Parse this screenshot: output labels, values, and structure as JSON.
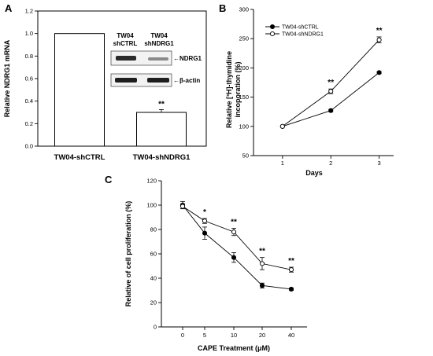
{
  "chart_data": [
    {
      "panel": "A",
      "type": "bar",
      "ylabel": "Relative NDRG1 mRNA",
      "ylim": [
        0,
        1.2
      ],
      "yticks": [
        "0.0",
        "0.2",
        "0.4",
        "0.6",
        "0.8",
        "1.0",
        "1.2"
      ],
      "categories": [
        "TW04-shCTRL",
        "TW04-shNDRG1"
      ],
      "values": [
        1.0,
        0.3
      ],
      "errors": [
        0,
        0.025
      ],
      "significance": [
        "",
        "**"
      ],
      "inset": {
        "lane_labels": [
          [
            "TW04",
            "shCTRL"
          ],
          [
            "TW04",
            "shNDRG1"
          ]
        ],
        "bands": [
          "←NDRG1",
          "←β-actin"
        ]
      }
    },
    {
      "panel": "B",
      "type": "line",
      "xlabel": "Days",
      "ylabel_line1": "Relative [³H]-thymidine",
      "ylabel_line2": "incoporation (%)",
      "xlim": [
        0.4,
        3.3
      ],
      "ylim": [
        50,
        300
      ],
      "x": [
        1,
        2,
        3
      ],
      "xticks": [
        "1",
        "2",
        "3"
      ],
      "yticks": [
        "50",
        "100",
        "150",
        "200",
        "250",
        "300"
      ],
      "series": [
        {
          "name": "TW04-shCTRL",
          "marker": "filled",
          "values": [
            100,
            127,
            192
          ],
          "errors": [
            0,
            2,
            2
          ]
        },
        {
          "name": "TW04-shNDRG1",
          "marker": "open",
          "values": [
            100,
            160,
            248
          ],
          "errors": [
            0,
            4,
            5
          ]
        }
      ],
      "significance": [
        "",
        "**",
        "**"
      ]
    },
    {
      "panel": "C",
      "type": "line",
      "xlabel": "CAPE Treatment (μM)",
      "ylabel": "Relative of cell proliferation (%)",
      "ylim": [
        0,
        120
      ],
      "x": [
        "0",
        "5",
        "10",
        "20",
        "40"
      ],
      "yticks": [
        "0",
        "20",
        "40",
        "60",
        "80",
        "100",
        "120"
      ],
      "series": [
        {
          "name": "TW04-shCTRL",
          "marker": "filled",
          "values": [
            100,
            77,
            57,
            34,
            31
          ],
          "errors": [
            3,
            5,
            4,
            2,
            1
          ]
        },
        {
          "name": "TW04-shNDRG1",
          "marker": "open",
          "values": [
            99,
            87,
            78,
            52,
            47
          ],
          "errors": [
            2,
            2,
            3,
            5,
            2
          ]
        }
      ],
      "significance": [
        "",
        "*",
        "**",
        "**",
        "**"
      ]
    }
  ]
}
